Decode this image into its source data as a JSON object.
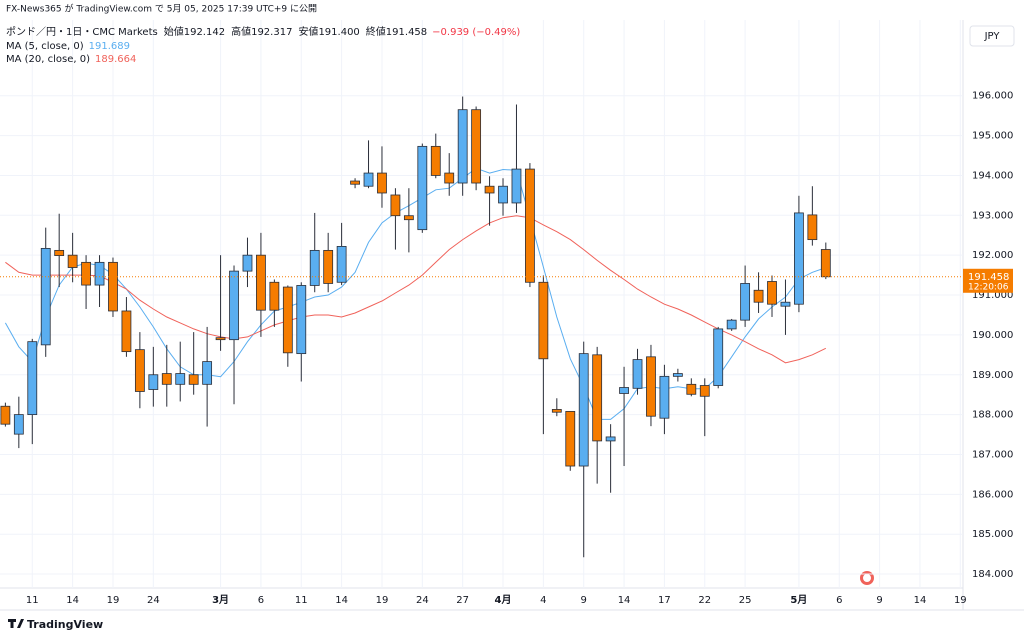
{
  "byline": "FX-News365 が TradingView.com で 5月 05, 2025 17:39 UTC+9 に公開",
  "footer": "TradingView",
  "chart_data": {
    "type": "candlestick",
    "title": "ポンド／円・1日・CMC Markets",
    "ohlc": [
      {
        "label": "始値",
        "value": "192.142"
      },
      {
        "label": "高値",
        "value": "192.317"
      },
      {
        "label": "安値",
        "value": "191.400"
      },
      {
        "label": "終値",
        "value": "191.458"
      }
    ],
    "change": "−0.939 (−0.49%)",
    "currency": "JPY",
    "countdown": "12:20:06",
    "up_color": "#5aaef0",
    "down_color": "#f57c00",
    "open": [
      188.21,
      187.51,
      188.0,
      189.75,
      192.12,
      192.0,
      191.82,
      191.25,
      191.82,
      190.6,
      189.63,
      188.63,
      189.03,
      188.76,
      189.0,
      188.76,
      189.93,
      189.88,
      191.6,
      192.0,
      191.32,
      191.2,
      189.53,
      191.24,
      192.12,
      191.32,
      193.86,
      193.73,
      194.06,
      193.51,
      192.99,
      192.64,
      194.73,
      194.06,
      193.81,
      195.65,
      193.73,
      193.31,
      193.31,
      194.16,
      191.32,
      188.13,
      188.08,
      186.71,
      189.5,
      187.34,
      188.53,
      188.66,
      189.45,
      187.91,
      188.96,
      188.76,
      188.73,
      188.73,
      190.15,
      190.37,
      191.12,
      191.34,
      190.72,
      190.77,
      193.01,
      192.142
    ],
    "high": [
      188.3,
      188.45,
      189.9,
      192.69,
      193.04,
      192.56,
      192.0,
      192.0,
      191.94,
      190.95,
      190.07,
      189.7,
      189.75,
      189.83,
      190.07,
      190.2,
      192.0,
      191.74,
      192.44,
      192.56,
      191.39,
      191.24,
      191.32,
      193.06,
      192.56,
      192.81,
      193.93,
      194.88,
      194.73,
      193.68,
      193.68,
      194.8,
      195.05,
      194.56,
      195.98,
      195.73,
      193.98,
      193.93,
      195.78,
      194.31,
      191.49,
      188.41,
      188.08,
      189.83,
      189.7,
      187.76,
      189.2,
      189.65,
      189.75,
      189.25,
      189.15,
      188.91,
      188.91,
      190.2,
      190.4,
      191.74,
      191.57,
      191.49,
      191.39,
      193.49,
      193.73,
      192.317
    ],
    "low": [
      187.7,
      187.16,
      187.26,
      189.45,
      191.2,
      191.32,
      190.65,
      190.7,
      190.45,
      189.45,
      188.16,
      188.2,
      188.2,
      188.33,
      188.5,
      187.7,
      189.6,
      188.26,
      191.2,
      189.95,
      190.2,
      189.2,
      188.83,
      191.07,
      191.07,
      191.25,
      193.68,
      193.68,
      193.19,
      192.14,
      192.07,
      192.56,
      193.93,
      193.49,
      193.49,
      193.63,
      192.74,
      192.99,
      193.06,
      191.2,
      187.51,
      187.96,
      186.59,
      184.42,
      186.27,
      186.04,
      186.71,
      188.5,
      187.71,
      187.51,
      188.83,
      188.46,
      187.46,
      188.66,
      190.1,
      190.2,
      190.55,
      190.45,
      190.0,
      190.57,
      192.24,
      191.4
    ],
    "close": [
      187.76,
      188.0,
      189.83,
      192.17,
      191.99,
      191.69,
      191.25,
      191.82,
      190.6,
      189.58,
      188.58,
      189.0,
      188.76,
      189.03,
      188.76,
      189.33,
      189.88,
      191.6,
      192.0,
      190.62,
      190.62,
      189.55,
      191.24,
      192.12,
      191.29,
      192.22,
      193.78,
      194.06,
      193.56,
      192.99,
      192.89,
      194.73,
      194.0,
      193.81,
      195.65,
      193.81,
      193.56,
      193.73,
      194.16,
      191.32,
      189.4,
      188.06,
      186.71,
      189.53,
      187.34,
      187.44,
      188.68,
      189.38,
      187.96,
      188.96,
      189.03,
      188.51,
      188.46,
      190.15,
      190.37,
      191.29,
      190.82,
      190.77,
      190.82,
      193.06,
      192.39,
      191.458
    ],
    "series": [
      {
        "name": "MA (5, close, 0)",
        "color": "#5aaef0",
        "legend_value": "191.689",
        "values": [
          190.3,
          189.7,
          189.33,
          190.45,
          191.25,
          191.7,
          191.8,
          191.74,
          191.52,
          191.15,
          190.7,
          190.2,
          189.65,
          189.2,
          189.0,
          189.0,
          188.95,
          189.33,
          189.83,
          190.25,
          190.6,
          190.7,
          190.82,
          190.95,
          191.0,
          191.2,
          191.57,
          192.32,
          192.81,
          193.06,
          193.24,
          193.44,
          193.64,
          193.68,
          193.93,
          194.18,
          194.06,
          194.15,
          194.13,
          192.94,
          191.7,
          190.45,
          189.4,
          188.7,
          187.88,
          187.88,
          188.15,
          188.65,
          188.7,
          188.65,
          188.7,
          188.65,
          188.65,
          188.95,
          189.45,
          189.95,
          190.4,
          190.7,
          190.95,
          191.4,
          191.57,
          191.689
        ]
      },
      {
        "name": "MA (20, close, 0)",
        "color": "#f0625a",
        "legend_value": "189.664",
        "values": [
          191.82,
          191.57,
          191.5,
          191.5,
          191.5,
          191.5,
          191.5,
          191.48,
          191.32,
          191.15,
          190.87,
          190.65,
          190.45,
          190.3,
          190.15,
          190.03,
          189.95,
          189.9,
          189.95,
          190.1,
          190.25,
          190.35,
          190.45,
          190.5,
          190.5,
          190.45,
          190.55,
          190.7,
          190.85,
          191.05,
          191.25,
          191.5,
          191.82,
          192.14,
          192.39,
          192.61,
          192.81,
          192.94,
          192.99,
          192.94,
          192.76,
          192.59,
          192.39,
          192.14,
          191.87,
          191.62,
          191.39,
          191.15,
          190.95,
          190.77,
          190.65,
          190.5,
          190.32,
          190.15,
          190.0,
          189.83,
          189.65,
          189.5,
          189.3,
          189.38,
          189.5,
          189.664
        ]
      }
    ],
    "ylim": [
      183.65,
      197.9
    ],
    "yticks": [
      {
        "value": 184,
        "label": "184.000"
      },
      {
        "value": 185,
        "label": "185.000"
      },
      {
        "value": 186,
        "label": "186.000"
      },
      {
        "value": 187,
        "label": "187.000"
      },
      {
        "value": 188,
        "label": "188.000"
      },
      {
        "value": 189,
        "label": "189.000"
      },
      {
        "value": 190,
        "label": "190.000"
      },
      {
        "value": 191,
        "label": "191.000"
      },
      {
        "value": 192,
        "label": "192.000"
      },
      {
        "value": 193,
        "label": "193.000"
      },
      {
        "value": 194,
        "label": "194.000"
      },
      {
        "value": 195,
        "label": "195.000"
      },
      {
        "value": 196,
        "label": "196.000"
      }
    ],
    "xlim": [
      -0.4,
      71.2
    ],
    "xticks": [
      {
        "value": 2,
        "label": "11"
      },
      {
        "value": 5,
        "label": "14"
      },
      {
        "value": 8,
        "label": "19"
      },
      {
        "value": 11,
        "label": "24"
      },
      {
        "value": 16,
        "label": "3月"
      },
      {
        "value": 19,
        "label": "6"
      },
      {
        "value": 22,
        "label": "11"
      },
      {
        "value": 25,
        "label": "14"
      },
      {
        "value": 28,
        "label": "19"
      },
      {
        "value": 31,
        "label": "24"
      },
      {
        "value": 34,
        "label": "27"
      },
      {
        "value": 37,
        "label": "4月"
      },
      {
        "value": 40,
        "label": "4"
      },
      {
        "value": 43,
        "label": "9"
      },
      {
        "value": 46,
        "label": "14"
      },
      {
        "value": 49,
        "label": "17"
      },
      {
        "value": 52,
        "label": "22"
      },
      {
        "value": 55,
        "label": "25"
      },
      {
        "value": 59,
        "label": "5月"
      },
      {
        "value": 62,
        "label": "6"
      },
      {
        "value": 65,
        "label": "9"
      },
      {
        "value": 68,
        "label": "14"
      },
      {
        "value": 71,
        "label": "19"
      }
    ],
    "grid": true
  }
}
